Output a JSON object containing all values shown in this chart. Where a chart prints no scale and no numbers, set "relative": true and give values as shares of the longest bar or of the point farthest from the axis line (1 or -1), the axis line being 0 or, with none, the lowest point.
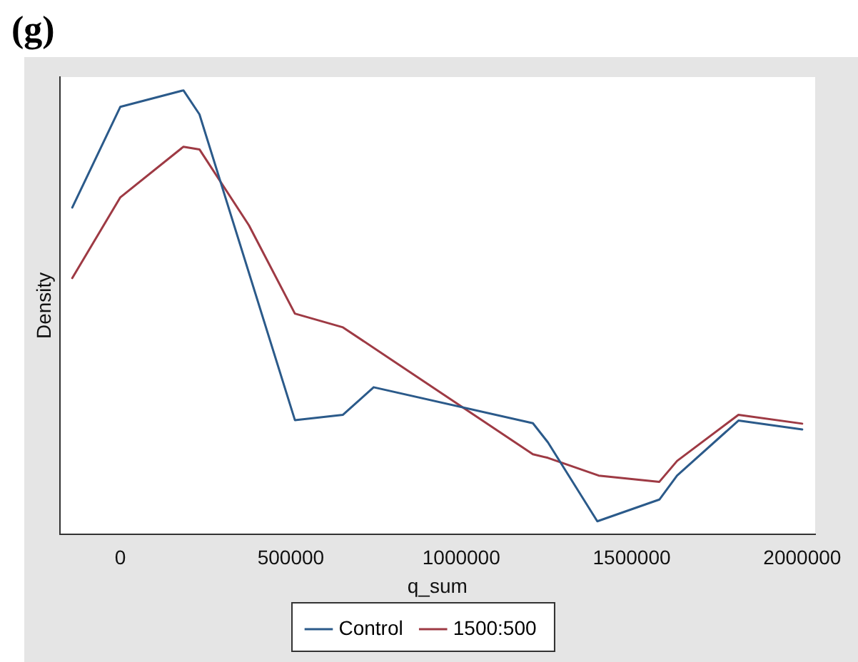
{
  "chart_data": {
    "type": "line",
    "title": "(g)",
    "xlabel": "q_sum",
    "ylabel": "Density",
    "relative": true,
    "xlim": [
      -178000,
      2038000
    ],
    "xticks": [
      0,
      500000,
      1000000,
      1500000,
      2000000
    ],
    "grid": false,
    "legend": "bottom",
    "marker": "none",
    "line_style": "solid",
    "series": [
      {
        "name": "Control",
        "color": "#2b5a8a",
        "x": [
          -141000,
          0,
          185000,
          232000,
          512000,
          653000,
          743000,
          1210000,
          1254000,
          1399000,
          1581000,
          1633000,
          1813000,
          2000000
        ],
        "values": [
          0.736,
          0.963,
          1,
          0.946,
          0.257,
          0.269,
          0.331,
          0.25,
          0.207,
          0.029,
          0.078,
          0.132,
          0.256,
          0.236
        ]
      },
      {
        "name": "1500:500",
        "color": "#9e3a44",
        "x": [
          -141000,
          0,
          185000,
          232000,
          377000,
          512000,
          653000,
          1210000,
          1254000,
          1403000,
          1581000,
          1633000,
          1813000,
          2000000
        ],
        "values": [
          0.577,
          0.759,
          0.873,
          0.867,
          0.696,
          0.497,
          0.466,
          0.18,
          0.172,
          0.132,
          0.118,
          0.165,
          0.269,
          0.249
        ]
      }
    ]
  }
}
